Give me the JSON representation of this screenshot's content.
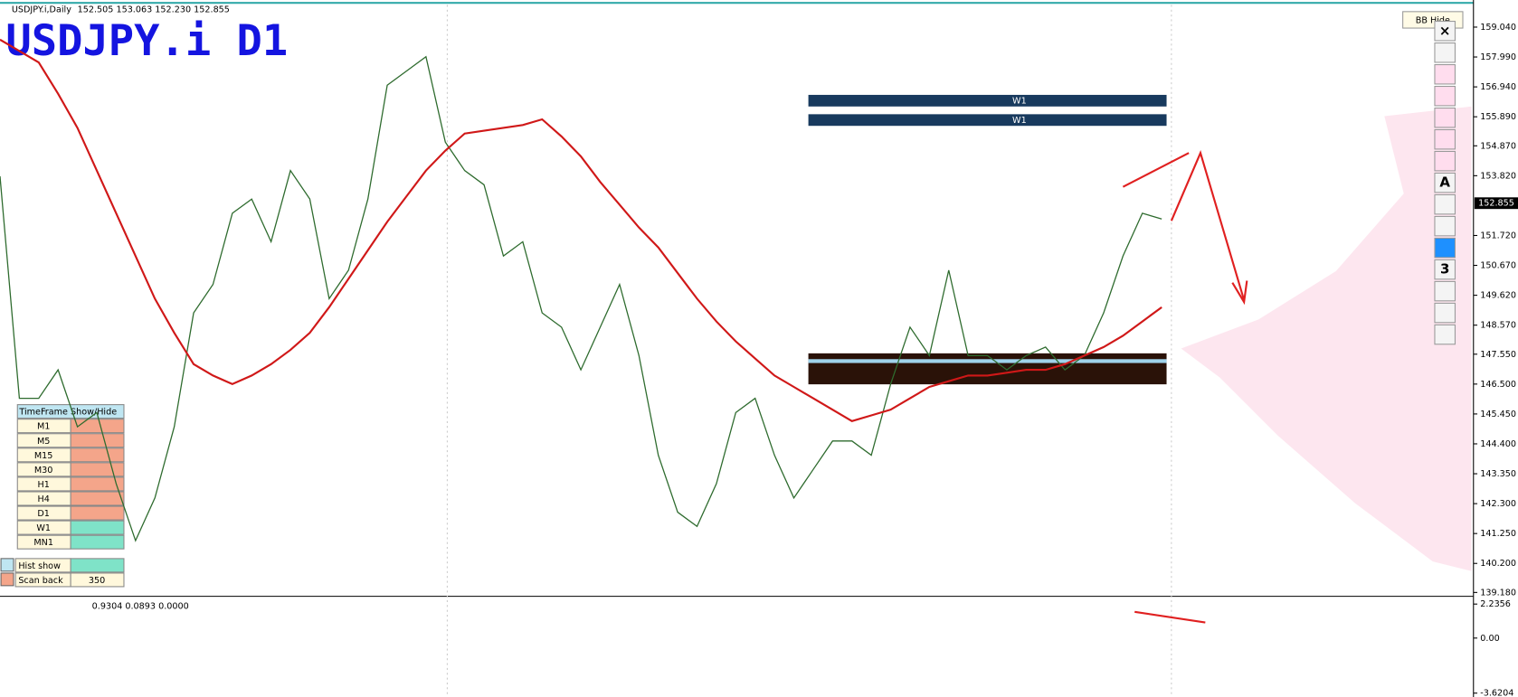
{
  "header": {
    "info": "USDJPY.i,Daily",
    "ohlc": "152.505 153.063 152.230 152.855",
    "button": "BB Hide"
  },
  "chart_data": {
    "type": "line",
    "title": "USDJPY.i D1",
    "series": [
      {
        "color": "#2e6b2e",
        "values": [
          153.8,
          146,
          146,
          147,
          145,
          145.5,
          143,
          141,
          142.5,
          145,
          149,
          150,
          152.5,
          153,
          151.5,
          154,
          153,
          149.5,
          150.5,
          153,
          157,
          157.5,
          158,
          155,
          154,
          153.5,
          151,
          151.5,
          149,
          148.5,
          147,
          148.5,
          150,
          147.5,
          144,
          142,
          141.5,
          143,
          145.5,
          146,
          144,
          142.5,
          143.5,
          144.5,
          144.5,
          144,
          146.5,
          148.5,
          147.5,
          150.5,
          147.5,
          147.5,
          147,
          147.5,
          147.8,
          147,
          147.5,
          149,
          151,
          152.5,
          152.3
        ]
      },
      {
        "color": "#d01818",
        "values": [
          158.6,
          158.2,
          157.8,
          156.7,
          155.5,
          154.0,
          152.5,
          151.0,
          149.5,
          148.3,
          147.2,
          146.8,
          146.5,
          146.8,
          147.2,
          147.7,
          148.3,
          149.2,
          150.2,
          151.2,
          152.2,
          153.1,
          154.0,
          154.7,
          155.3,
          155.4,
          155.5,
          155.6,
          155.8,
          155.2,
          154.5,
          153.6,
          152.8,
          152.0,
          151.3,
          150.4,
          149.5,
          148.7,
          148.0,
          147.4,
          146.8,
          146.4,
          146.0,
          145.6,
          145.2,
          145.4,
          145.6,
          146.0,
          146.4,
          146.6,
          146.8,
          146.8,
          146.9,
          147.0,
          147.0,
          147.2,
          147.5,
          147.8,
          148.2,
          148.7,
          149.2
        ]
      }
    ],
    "ylim": [
      139.18,
      159.04
    ],
    "yticks": [
      {
        "value": 159.04,
        "label": "159.040"
      },
      {
        "value": 157.99,
        "label": "157.990"
      },
      {
        "value": 156.94,
        "label": "156.940"
      },
      {
        "value": 155.89,
        "label": "155.890"
      },
      {
        "value": 154.87,
        "label": "154.870"
      },
      {
        "value": 153.82,
        "label": "153.820"
      },
      {
        "value": 151.72,
        "label": "151.720"
      },
      {
        "value": 150.67,
        "label": "150.670"
      },
      {
        "value": 149.62,
        "label": "149.620"
      },
      {
        "value": 148.57,
        "label": "148.570"
      },
      {
        "value": 147.55,
        "label": "147.550"
      },
      {
        "value": 146.5,
        "label": "146.500"
      },
      {
        "value": 145.45,
        "label": "145.450"
      },
      {
        "value": 144.4,
        "label": "144.400"
      },
      {
        "value": 143.35,
        "label": "143.350"
      },
      {
        "value": 142.3,
        "label": "142.300"
      },
      {
        "value": 141.25,
        "label": "141.250"
      },
      {
        "value": 140.2,
        "label": "140.200"
      },
      {
        "value": 139.18,
        "label": "139.180"
      }
    ],
    "current_price": 152.855,
    "zones": [
      "W1",
      "W1"
    ]
  },
  "indicator": {
    "values_text": "0.9304 0.0893 0.0000",
    "ylim": [
      -3.6204,
      2.2356
    ],
    "yticks": [
      2.2356,
      {
        "value": 0,
        "label": "0.00"
      },
      -3.6204
    ]
  },
  "toolbar": {
    "glyphs": [
      "×",
      "A",
      "3"
    ]
  },
  "timeframe_panel": {
    "header": "TimeFrame Show/Hide",
    "rows": [
      {
        "label": "M1",
        "color": "#f4a58a"
      },
      {
        "label": "M5",
        "color": "#f4a58a"
      },
      {
        "label": "M15",
        "color": "#f4a58a"
      },
      {
        "label": "M30",
        "color": "#f4a58a"
      },
      {
        "label": "H1",
        "color": "#f4a58a"
      },
      {
        "label": "H4",
        "color": "#f4a58a"
      },
      {
        "label": "D1",
        "color": "#f4a58a"
      },
      {
        "label": "W1",
        "color": "#7fe3c8"
      },
      {
        "label": "MN1",
        "color": "#7fe3c8"
      }
    ],
    "hist_show": "Hist show",
    "scan_back": "Scan back",
    "scan_back_value": 350
  }
}
